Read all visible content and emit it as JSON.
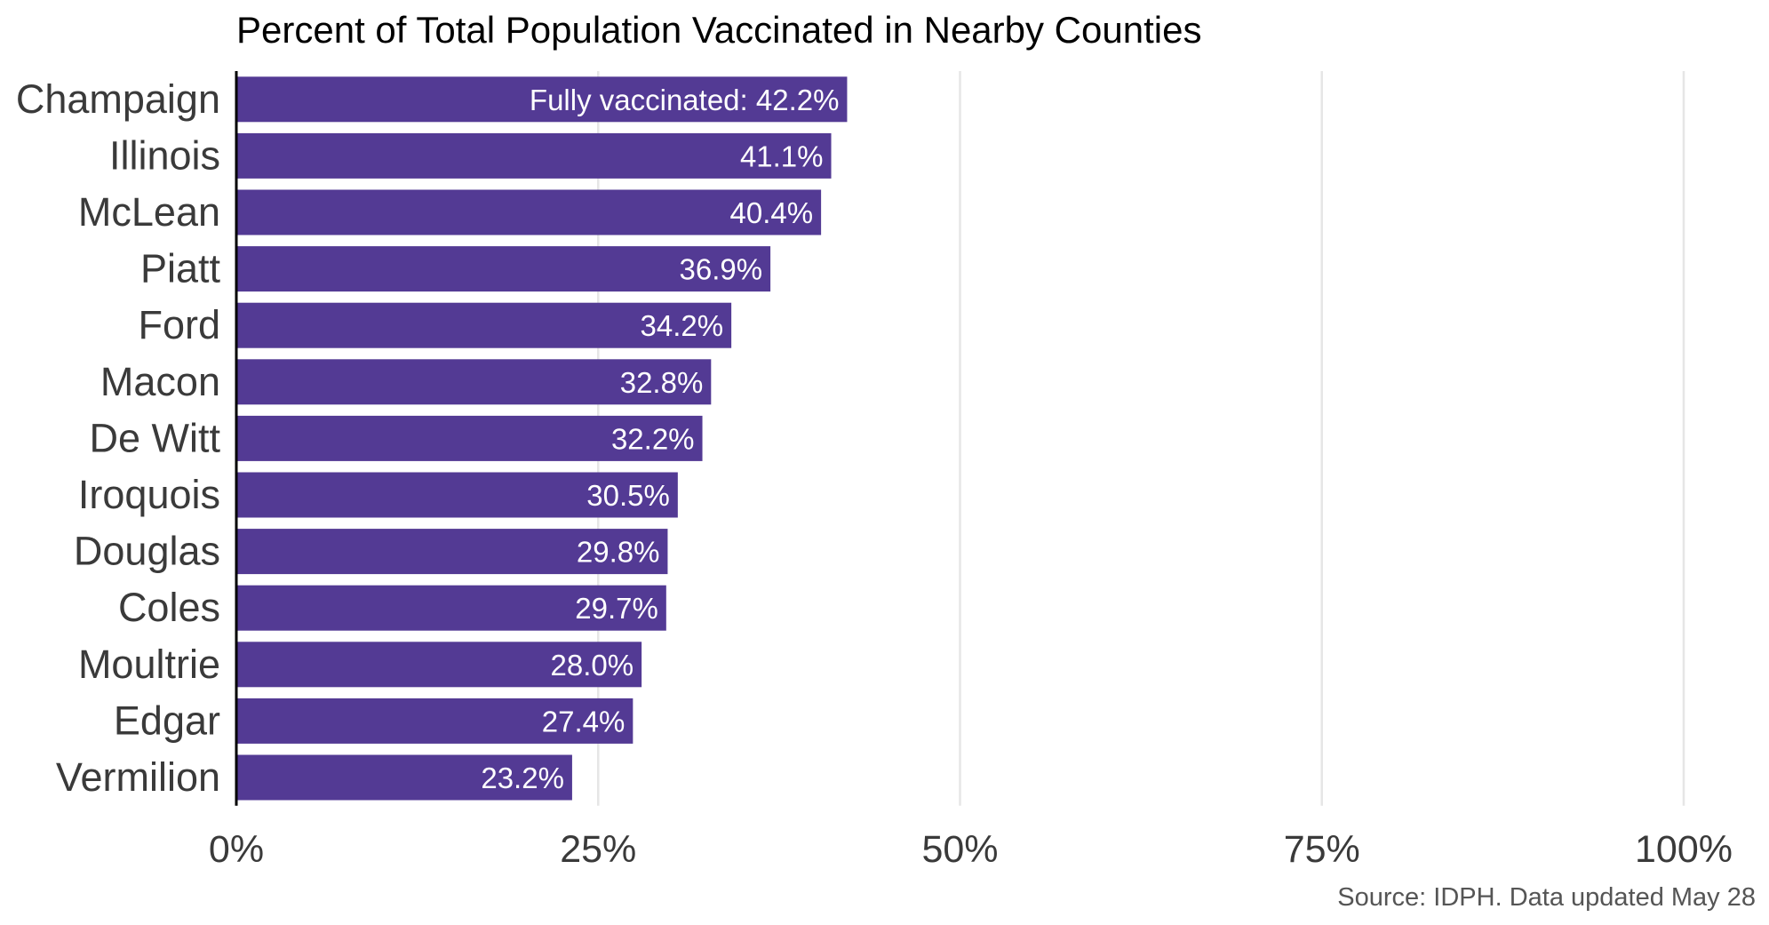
{
  "chart_data": {
    "type": "bar",
    "orientation": "horizontal",
    "title": "Percent of Total Population Vaccinated in Nearby Counties",
    "caption": "Source: IDPH. Data updated May 28",
    "categories": [
      "Champaign",
      "Illinois",
      "McLean",
      "Piatt",
      "Ford",
      "Macon",
      "De Witt",
      "Iroquois",
      "Douglas",
      "Coles",
      "Moultrie",
      "Edgar",
      "Vermilion"
    ],
    "values": [
      42.2,
      41.1,
      40.4,
      36.9,
      34.2,
      32.8,
      32.2,
      30.5,
      29.8,
      29.7,
      28.0,
      27.4,
      23.2
    ],
    "value_labels": [
      "Fully vaccinated: 42.2%",
      "41.1%",
      "40.4%",
      "36.9%",
      "34.2%",
      "32.8%",
      "32.2%",
      "30.5%",
      "29.8%",
      "29.7%",
      "28.0%",
      "27.4%",
      "23.2%"
    ],
    "xlim": [
      0,
      100
    ],
    "x_ticks": [
      0,
      25,
      50,
      75,
      100
    ],
    "x_tick_labels": [
      "0%",
      "25%",
      "50%",
      "75%",
      "100%"
    ],
    "xlabel": "",
    "ylabel": "",
    "grid": "vertical major gridlines",
    "legend": "none",
    "colors": {
      "bar": "#533a94",
      "grid": "#e6e6e6",
      "axis": "#000000"
    }
  }
}
